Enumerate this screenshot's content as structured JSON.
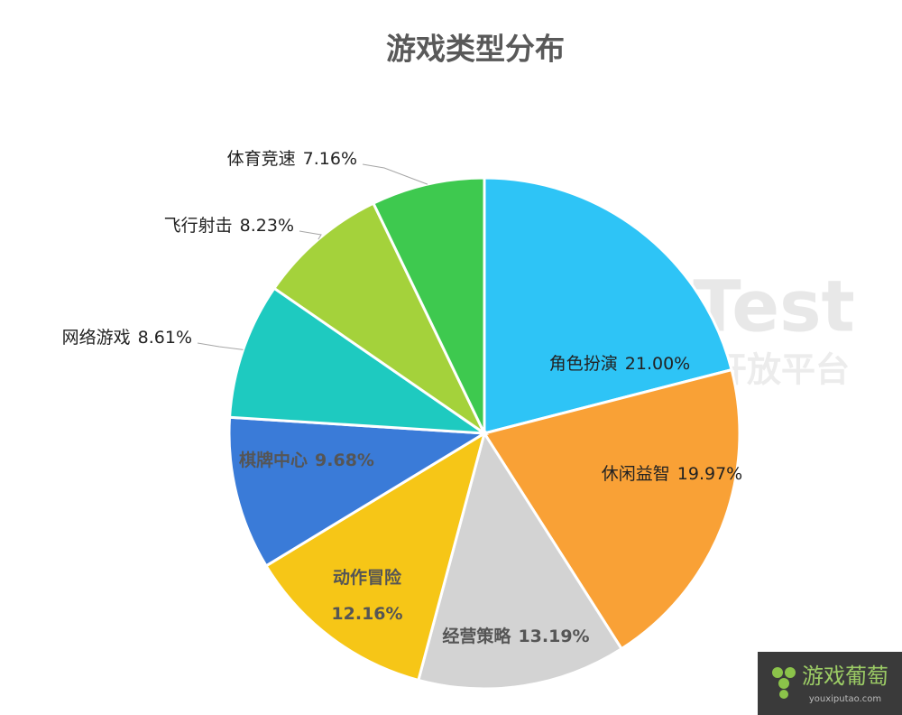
{
  "chart_data": {
    "type": "pie",
    "title": "游戏类型分布",
    "categories": [
      "角色扮演",
      "休闲益智",
      "经营策略",
      "动作冒险",
      "棋牌中心",
      "网络游戏",
      "飞行射击",
      "体育竞速"
    ],
    "values": [
      21.0,
      19.97,
      13.19,
      12.16,
      9.68,
      8.61,
      8.23,
      7.16
    ],
    "value_labels": [
      "21.00%",
      "19.97%",
      "13.19%",
      "12.16%",
      "9.68%",
      "8.61%",
      "8.23%",
      "7.16%"
    ],
    "colors": [
      "#2ec4f6",
      "#f9a136",
      "#d3d3d3",
      "#f6c617",
      "#3a7bd8",
      "#1ecac0",
      "#a4d23b",
      "#3ec94f"
    ]
  },
  "watermark": {
    "title": "WeTest",
    "subtitle": "腾讯游戏开放平台"
  },
  "logo": {
    "name": "游戏葡萄",
    "url": "youxiputao.com"
  }
}
